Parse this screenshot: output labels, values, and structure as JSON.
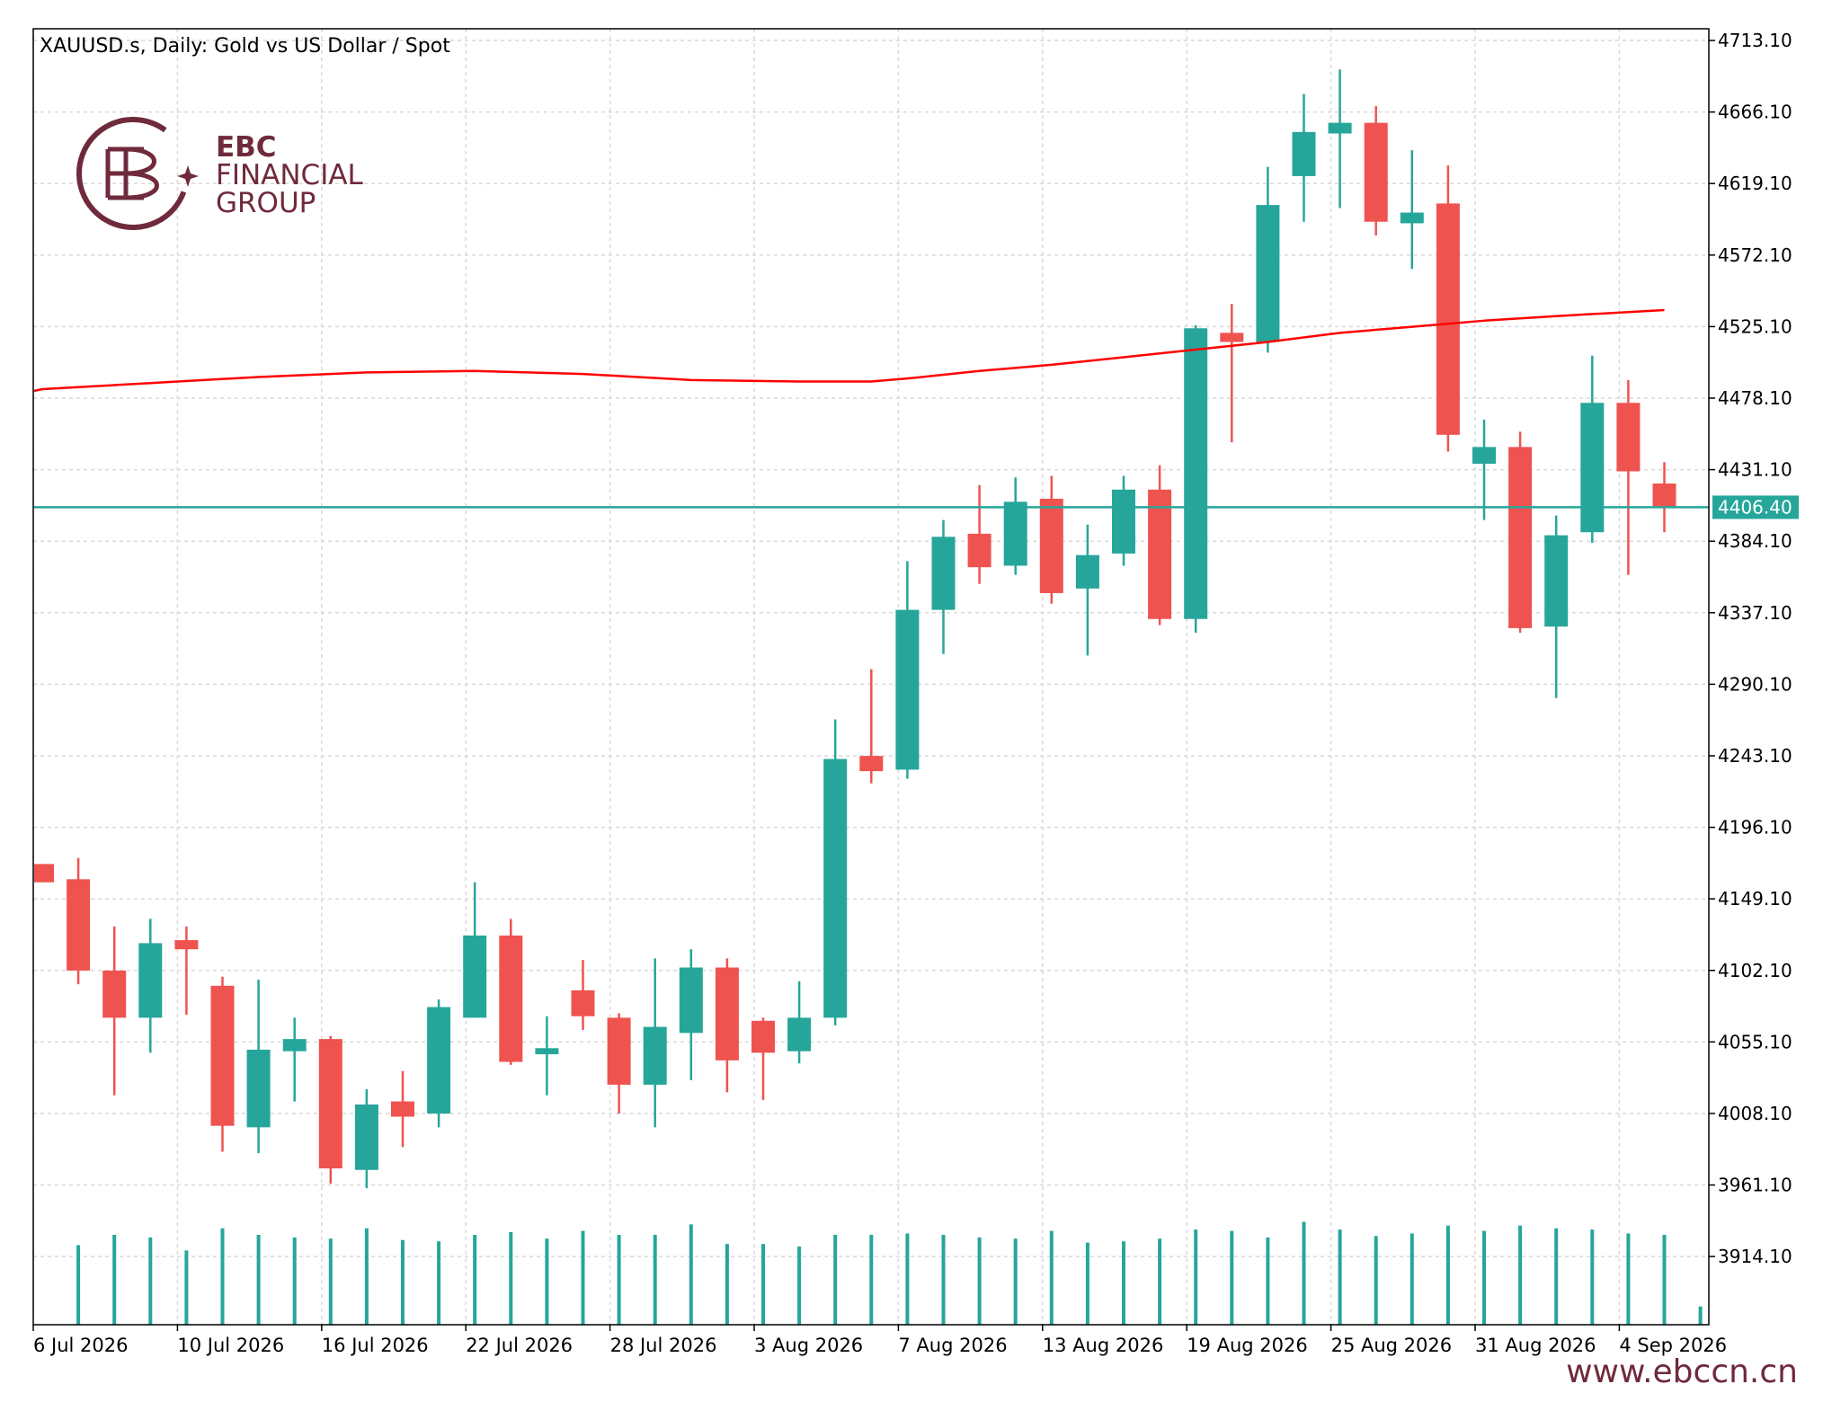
{
  "chart_data": {
    "type": "candlestick",
    "title": "XAUUSD.s, Daily:  Gold vs US Dollar / Spot",
    "current_price": 4406.4,
    "current_price_label": "4406.40",
    "y_ticks": [
      "4713.10",
      "4666.10",
      "4619.10",
      "4572.10",
      "4525.10",
      "4478.10",
      "4431.10",
      "4384.10",
      "4337.10",
      "4290.10",
      "4243.10",
      "4196.10",
      "4149.10",
      "4102.10",
      "4055.10",
      "4008.10",
      "3961.10",
      "3914.10"
    ],
    "ylim": [
      3869.3,
      4720.8
    ],
    "x_tick_labels": [
      "6 Jul 2026",
      "10 Jul 2026",
      "16 Jul 2026",
      "22 Jul 2026",
      "28 Jul 2026",
      "3 Aug 2026",
      "7 Aug 2026",
      "13 Aug 2026",
      "19 Aug 2026",
      "25 Aug 2026",
      "31 Aug 2026",
      "4 Sep 2026"
    ],
    "grid": true,
    "colors": {
      "bull": "#26a69a",
      "bear": "#ef5350",
      "ma": "#ff0000",
      "current_line": "#26a69a",
      "volume": "#26a69a",
      "grid": "#d9d9d9"
    },
    "candles": [
      {
        "o": 4172,
        "h": 4172,
        "l": 4160,
        "c": 4160
      },
      {
        "o": 4162,
        "h": 4176,
        "l": 4093,
        "c": 4102
      },
      {
        "o": 4102,
        "h": 4131,
        "l": 4020,
        "c": 4071
      },
      {
        "o": 4071,
        "h": 4136,
        "l": 4048,
        "c": 4120
      },
      {
        "o": 4122,
        "h": 4131,
        "l": 4073,
        "c": 4116
      },
      {
        "o": 4092,
        "h": 4098,
        "l": 3983,
        "c": 4000
      },
      {
        "o": 3999,
        "h": 4096,
        "l": 3982,
        "c": 4050
      },
      {
        "o": 4049,
        "h": 4071,
        "l": 4016,
        "c": 4057
      },
      {
        "o": 4057,
        "h": 4059,
        "l": 3962,
        "c": 3972
      },
      {
        "o": 3971,
        "h": 4024,
        "l": 3959,
        "c": 4014
      },
      {
        "o": 4016,
        "h": 4036,
        "l": 3986,
        "c": 4006
      },
      {
        "o": 4008,
        "h": 4083,
        "l": 3999,
        "c": 4078
      },
      {
        "o": 4071,
        "h": 4160,
        "l": 4071,
        "c": 4125
      },
      {
        "o": 4125,
        "h": 4136,
        "l": 4040,
        "c": 4042
      },
      {
        "o": 4047,
        "h": 4072,
        "l": 4020,
        "c": 4051
      },
      {
        "o": 4089,
        "h": 4109,
        "l": 4063,
        "c": 4072
      },
      {
        "o": 4071,
        "h": 4074,
        "l": 4008,
        "c": 4027
      },
      {
        "o": 4027,
        "h": 4110,
        "l": 3999,
        "c": 4065
      },
      {
        "o": 4061,
        "h": 4116,
        "l": 4030,
        "c": 4104
      },
      {
        "o": 4104,
        "h": 4110,
        "l": 4022,
        "c": 4043
      },
      {
        "o": 4069,
        "h": 4071,
        "l": 4017,
        "c": 4048
      },
      {
        "o": 4049,
        "h": 4095,
        "l": 4041,
        "c": 4071
      },
      {
        "o": 4071,
        "h": 4267,
        "l": 4066,
        "c": 4241
      },
      {
        "o": 4243,
        "h": 4300,
        "l": 4225,
        "c": 4233
      },
      {
        "o": 4234,
        "h": 4371,
        "l": 4228,
        "c": 4339
      },
      {
        "o": 4339,
        "h": 4398,
        "l": 4310,
        "c": 4387
      },
      {
        "o": 4389,
        "h": 4421,
        "l": 4356,
        "c": 4367
      },
      {
        "o": 4368,
        "h": 4426,
        "l": 4362,
        "c": 4410
      },
      {
        "o": 4412,
        "h": 4427,
        "l": 4343,
        "c": 4350
      },
      {
        "o": 4353,
        "h": 4395,
        "l": 4309,
        "c": 4375
      },
      {
        "o": 4376,
        "h": 4427,
        "l": 4368,
        "c": 4418
      },
      {
        "o": 4418,
        "h": 4434,
        "l": 4329,
        "c": 4333
      },
      {
        "o": 4333,
        "h": 4526,
        "l": 4324,
        "c": 4524
      },
      {
        "o": 4521,
        "h": 4540,
        "l": 4449,
        "c": 4515
      },
      {
        "o": 4515,
        "h": 4630,
        "l": 4508,
        "c": 4605
      },
      {
        "o": 4624,
        "h": 4678,
        "l": 4594,
        "c": 4653
      },
      {
        "o": 4652,
        "h": 4694,
        "l": 4603,
        "c": 4659
      },
      {
        "o": 4659,
        "h": 4670,
        "l": 4585,
        "c": 4594
      },
      {
        "o": 4593,
        "h": 4641,
        "l": 4563,
        "c": 4600
      },
      {
        "o": 4606,
        "h": 4631,
        "l": 4443,
        "c": 4454
      },
      {
        "o": 4435,
        "h": 4464,
        "l": 4398,
        "c": 4446
      },
      {
        "o": 4446,
        "h": 4456,
        "l": 4324,
        "c": 4327
      },
      {
        "o": 4328,
        "h": 4401,
        "l": 4281,
        "c": 4388
      },
      {
        "o": 4390,
        "h": 4506,
        "l": 4383,
        "c": 4475
      },
      {
        "o": 4475,
        "h": 4490,
        "l": 4362,
        "c": 4430
      },
      {
        "o": 4422,
        "h": 4436,
        "l": 4390,
        "c": 4406
      }
    ],
    "ma_points": [
      [
        0,
        4484
      ],
      [
        3,
        4488
      ],
      [
        6,
        4492
      ],
      [
        9,
        4495
      ],
      [
        12,
        4496
      ],
      [
        15,
        4494
      ],
      [
        18,
        4490
      ],
      [
        21,
        4489
      ],
      [
        23,
        4489
      ],
      [
        24,
        4491
      ],
      [
        26,
        4496
      ],
      [
        28,
        4500
      ],
      [
        30,
        4505
      ],
      [
        32,
        4510
      ],
      [
        34,
        4515
      ],
      [
        36,
        4521
      ],
      [
        38,
        4525
      ],
      [
        40,
        4529
      ],
      [
        42,
        4532
      ],
      [
        45,
        4536
      ]
    ],
    "volume": [
      0.61,
      0.69,
      0.67,
      0.57,
      0.74,
      0.69,
      0.67,
      0.66,
      0.74,
      0.65,
      0.64,
      0.69,
      0.71,
      0.66,
      0.72,
      0.69,
      0.69,
      0.77,
      0.62,
      0.62,
      0.6,
      0.69,
      0.69,
      0.7,
      0.69,
      0.67,
      0.66,
      0.72,
      0.63,
      0.64,
      0.66,
      0.73,
      0.72,
      0.67,
      0.79,
      0.73,
      0.68,
      0.7,
      0.76,
      0.72,
      0.76,
      0.74,
      0.73,
      0.7,
      0.69,
      0.14
    ]
  },
  "branding": {
    "name": "EBC",
    "line2": "FINANCIAL",
    "line3": "GROUP",
    "url": "www.ebccn.cn",
    "color": "#6f2a3b"
  }
}
